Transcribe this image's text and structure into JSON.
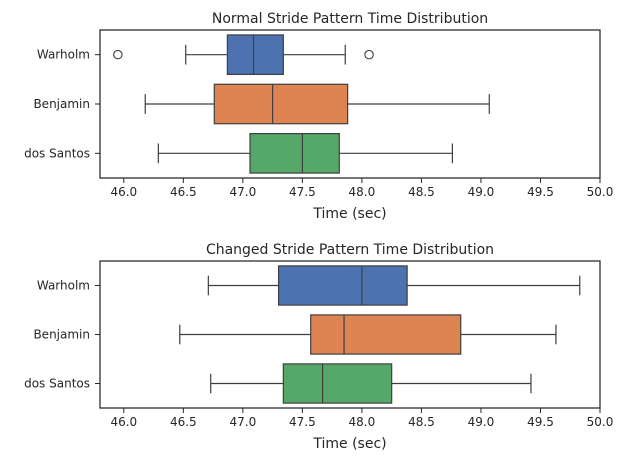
{
  "chart_data": [
    {
      "type": "box",
      "orientation": "horizontal",
      "title": "Normal Stride Pattern Time Distribution",
      "xlabel": "Time (sec)",
      "ylabel": "",
      "xlim": [
        45.8,
        50.0
      ],
      "xticks": [
        "46.0",
        "46.5",
        "47.0",
        "47.5",
        "48.0",
        "48.5",
        "49.0",
        "49.5",
        "50.0"
      ],
      "xtick_values": [
        46.0,
        46.5,
        47.0,
        47.5,
        48.0,
        48.5,
        49.0,
        49.5,
        50.0
      ],
      "grid": false,
      "series": [
        {
          "name": "Warholm",
          "color": "#4c72b0",
          "whisker_low": 46.52,
          "q1": 46.87,
          "median": 47.09,
          "q3": 47.34,
          "whisker_high": 47.86,
          "outliers": [
            45.95,
            48.06
          ]
        },
        {
          "name": "Benjamin",
          "color": "#dd8452",
          "whisker_low": 46.18,
          "q1": 46.76,
          "median": 47.25,
          "q3": 47.88,
          "whisker_high": 49.07,
          "outliers": []
        },
        {
          "name": "dos Santos",
          "color": "#55a868",
          "whisker_low": 46.29,
          "q1": 47.06,
          "median": 47.5,
          "q3": 47.81,
          "whisker_high": 48.76,
          "outliers": []
        }
      ]
    },
    {
      "type": "box",
      "orientation": "horizontal",
      "title": "Changed Stride Pattern Time Distribution",
      "xlabel": "Time (sec)",
      "ylabel": "",
      "xlim": [
        45.8,
        50.0
      ],
      "xticks": [
        "46.0",
        "46.5",
        "47.0",
        "47.5",
        "48.0",
        "48.5",
        "49.0",
        "49.5",
        "50.0"
      ],
      "xtick_values": [
        46.0,
        46.5,
        47.0,
        47.5,
        48.0,
        48.5,
        49.0,
        49.5,
        50.0
      ],
      "grid": false,
      "series": [
        {
          "name": "Warholm",
          "color": "#4c72b0",
          "whisker_low": 46.71,
          "q1": 47.3,
          "median": 48.0,
          "q3": 48.38,
          "whisker_high": 49.83,
          "outliers": []
        },
        {
          "name": "Benjamin",
          "color": "#dd8452",
          "whisker_low": 46.47,
          "q1": 47.57,
          "median": 47.85,
          "q3": 48.83,
          "whisker_high": 49.63,
          "outliers": []
        },
        {
          "name": "dos Santos",
          "color": "#55a868",
          "whisker_low": 46.73,
          "q1": 47.34,
          "median": 47.67,
          "q3": 48.25,
          "whisker_high": 49.42,
          "outliers": []
        }
      ]
    }
  ]
}
